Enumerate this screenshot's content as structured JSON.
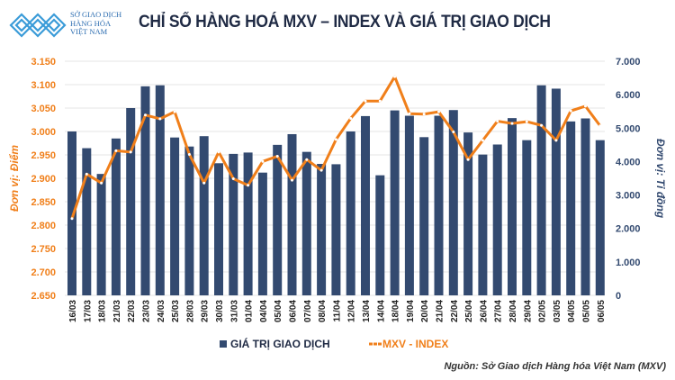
{
  "header": {
    "logo_text": [
      "SỞ GIAO DỊCH",
      "HÀNG HÓA",
      "VIỆT NAM"
    ],
    "title": "CHỈ SỐ HÀNG HOÁ MXV – INDEX VÀ GIÁ TRỊ GIAO DỊCH"
  },
  "source": "Nguồn: Sở Giao dịch Hàng hóa Việt Nam (MXV)",
  "colors": {
    "bar": "#334a70",
    "line": "#f07f1a",
    "left_axis": "#f07f1a",
    "right_axis": "#334a70",
    "logo": "#3a9bd8"
  },
  "chart_data": {
    "type": "bar+line",
    "categories": [
      "16/03",
      "17/03",
      "18/03",
      "21/03",
      "22/03",
      "23/03",
      "24/03",
      "25/03",
      "28/03",
      "29/03",
      "30/03",
      "31/03",
      "01/04",
      "04/04",
      "05/04",
      "06/04",
      "07/04",
      "08/04",
      "11/04",
      "12/04",
      "13/04",
      "14/04",
      "18/04",
      "19/04",
      "20/04",
      "21/04",
      "22/04",
      "25/04",
      "26/04",
      "27/04",
      "28/04",
      "29/04",
      "02/05",
      "03/05",
      "04/05",
      "05/05",
      "06/05"
    ],
    "series": [
      {
        "name": "GIÁ TRỊ GIAO DỊCH",
        "type": "bar",
        "axis": "right",
        "values": [
          4900,
          4400,
          3630,
          4690,
          5600,
          6250,
          6280,
          4720,
          4450,
          4760,
          3950,
          4230,
          4270,
          3670,
          4500,
          4820,
          4290,
          3930,
          3920,
          4900,
          5360,
          3590,
          5530,
          5370,
          4730,
          5370,
          5540,
          4870,
          4210,
          4510,
          5300,
          4640,
          6280,
          6180,
          5200,
          5290,
          4640
        ]
      },
      {
        "name": "MXV - INDEX",
        "type": "line",
        "axis": "left",
        "values": [
          2.814,
          2.909,
          2.89,
          2.959,
          2.956,
          3.035,
          3.027,
          3.042,
          2.951,
          2.89,
          2.956,
          2.899,
          2.885,
          2.936,
          2.947,
          2.896,
          2.94,
          2.917,
          2.983,
          3.028,
          3.065,
          3.065,
          3.117,
          3.038,
          3.037,
          3.042,
          2.999,
          2.94,
          2.981,
          3.022,
          3.017,
          3.021,
          3.013,
          2.981,
          3.044,
          3.054,
          3.012
        ]
      }
    ],
    "left_axis": {
      "label": "Đơn vị: Điểm",
      "range": [
        2.65,
        3.15
      ],
      "ticks": [
        "2.650",
        "2.700",
        "2.750",
        "2.800",
        "2.850",
        "2.900",
        "2.950",
        "3.000",
        "3.050",
        "3.100",
        "3.150"
      ]
    },
    "right_axis": {
      "label": "Đơn vị: Tỉ đồng",
      "range": [
        0,
        7000
      ],
      "ticks": [
        "0",
        "1.000",
        "2.000",
        "3.000",
        "4.000",
        "5.000",
        "6.000",
        "7.000"
      ]
    },
    "grid": true,
    "legend": {
      "position": "bottom",
      "items": [
        "GIÁ TRỊ GIAO DỊCH",
        "MXV - INDEX"
      ]
    }
  }
}
